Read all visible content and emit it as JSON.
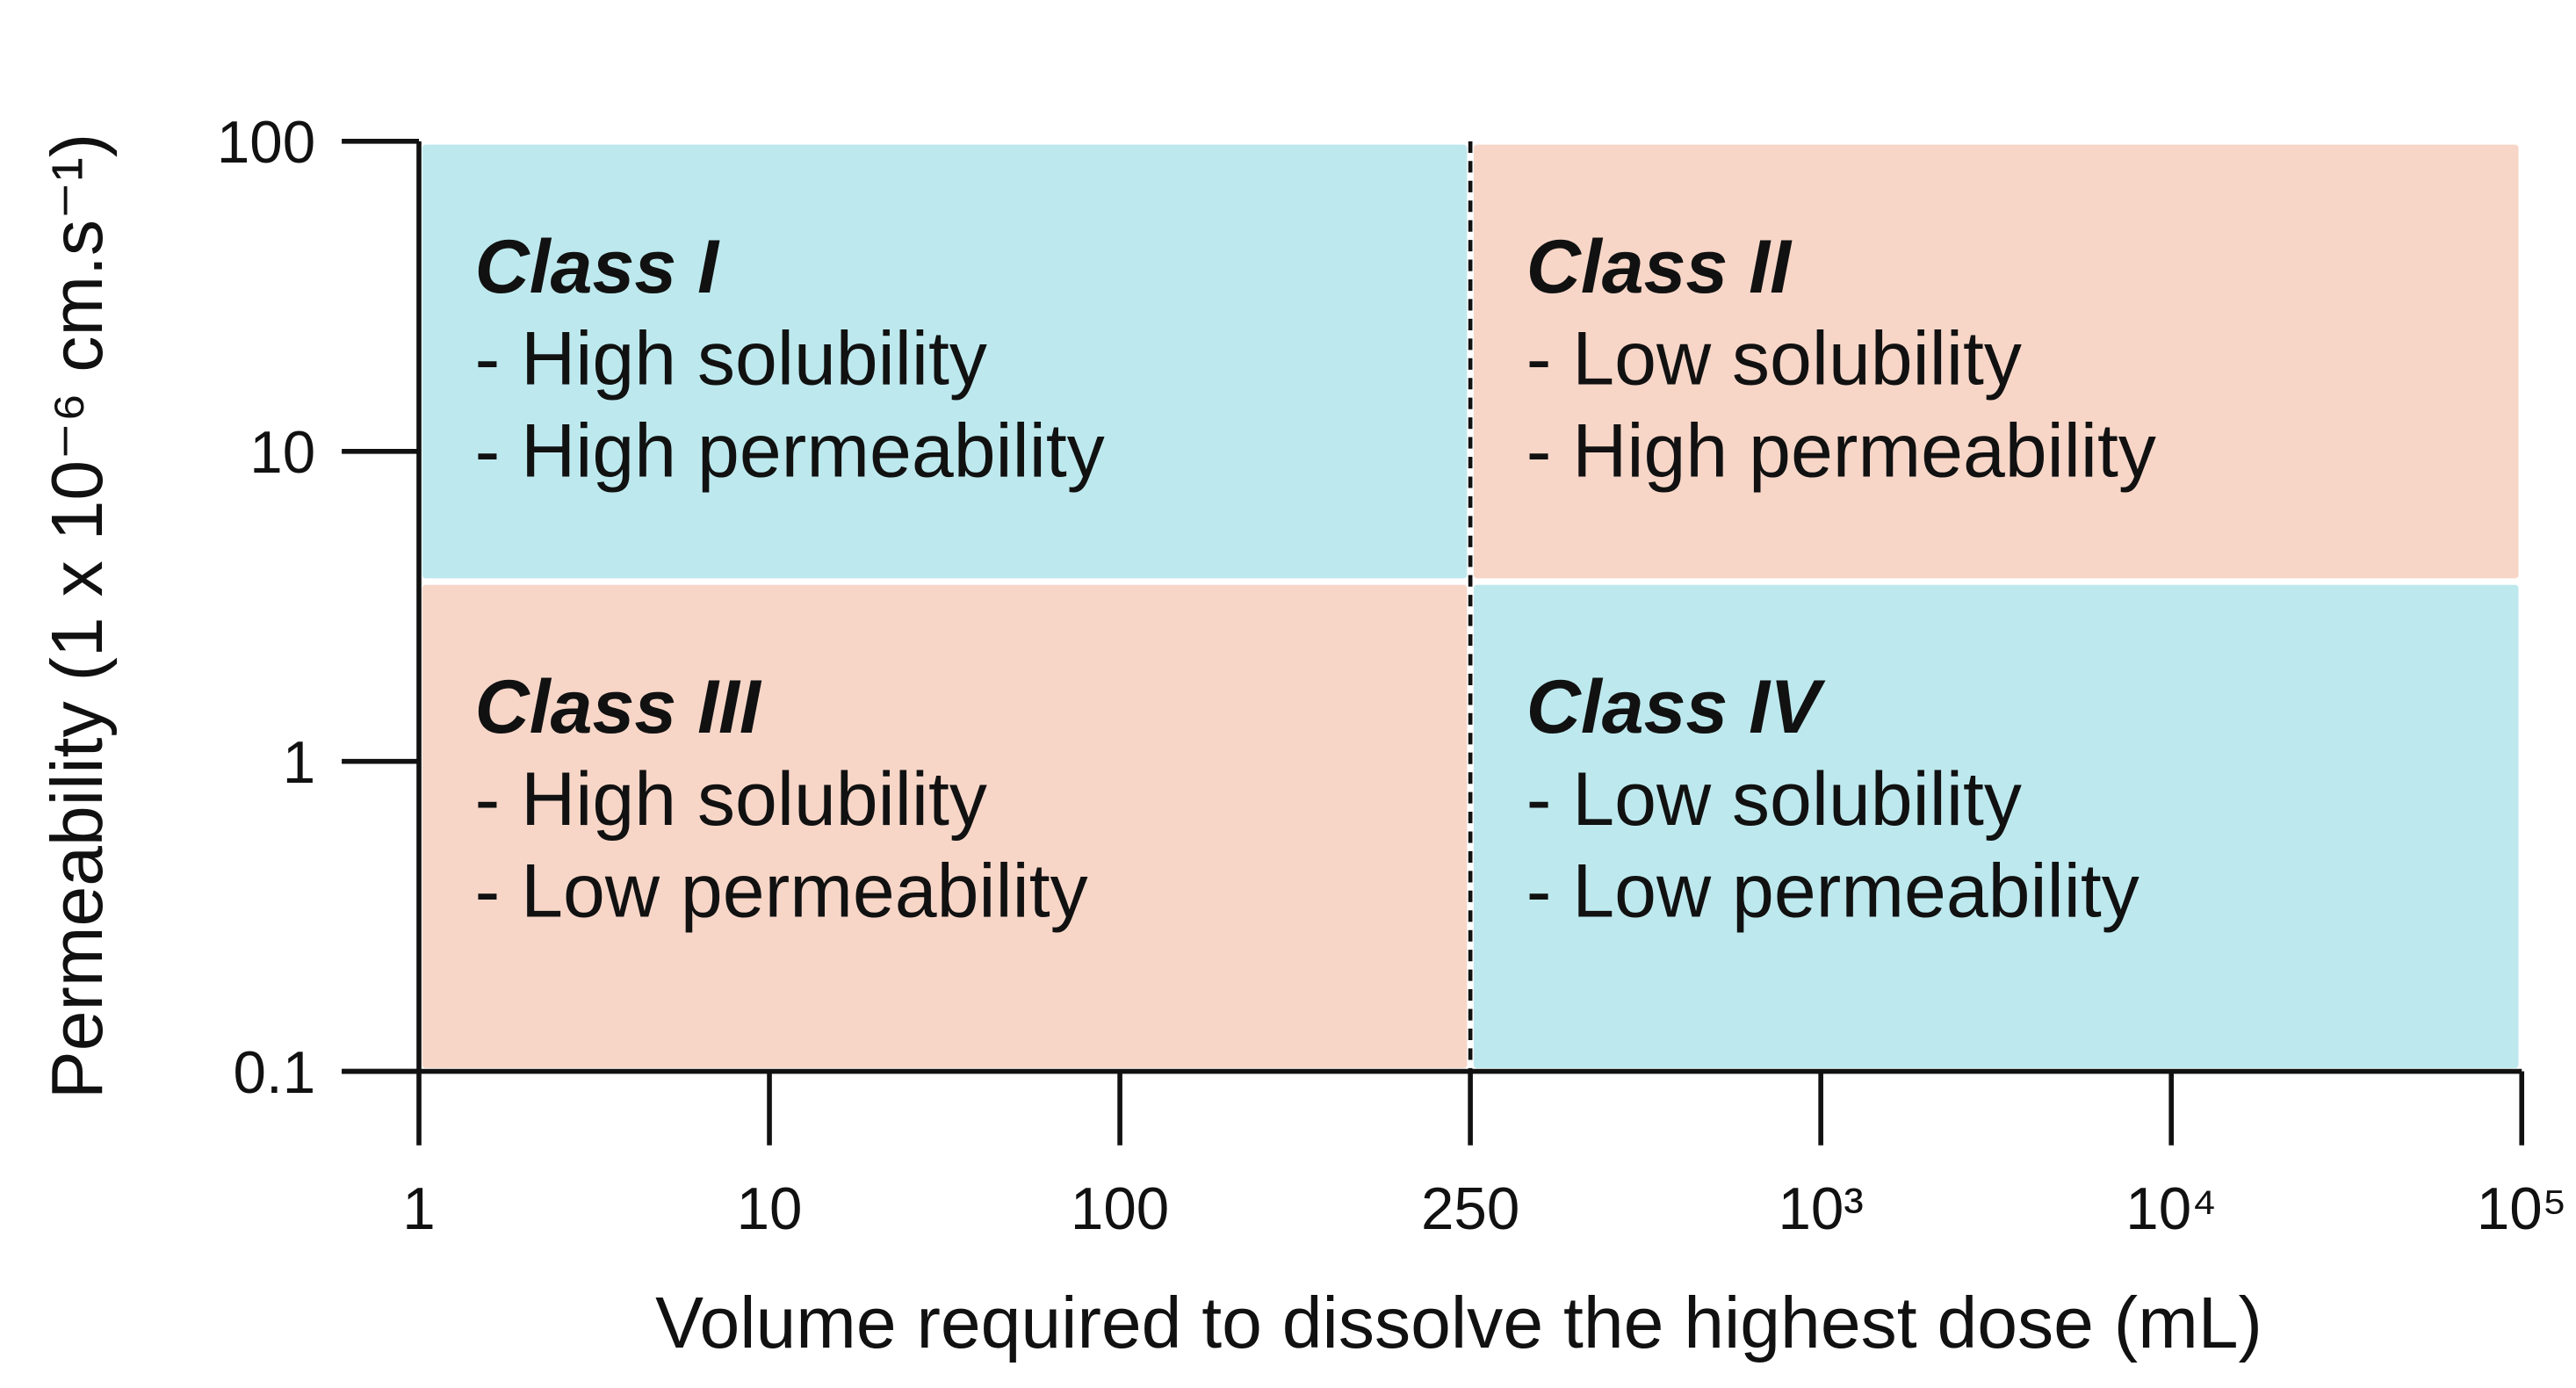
{
  "chart_data": {
    "type": "quadrant",
    "x_label": "Volume required to dissolve the highest dose (mL)",
    "y_label": "Permeability (1 x 10⁻⁶ cm.s⁻¹)",
    "xlim": [
      1,
      100000
    ],
    "xticks": [
      1,
      10,
      100,
      250,
      {
        "value": 1000,
        "label": "10³"
      },
      {
        "value": 10000,
        "label": "10⁴"
      },
      {
        "value": 100000,
        "label": "10⁵"
      }
    ],
    "ylim": [
      0.1,
      100
    ],
    "yticks": [
      0.1,
      1,
      10,
      100
    ],
    "y_scale": "log",
    "divider_x": 250,
    "regions": [
      {
        "title": "Class I",
        "lines": [
          "- High solubility",
          "- High permeability"
        ],
        "x": [
          1,
          250
        ],
        "y": [
          3.8,
          100
        ],
        "color": "#bde9ee"
      },
      {
        "title": "Class II",
        "lines": [
          "- Low solubility",
          "- High permeability"
        ],
        "x": [
          250,
          100000
        ],
        "y": [
          3.8,
          100
        ],
        "color": "#f7d6c8"
      },
      {
        "title": "Class III",
        "lines": [
          "- High solubility",
          "- Low permeability"
        ],
        "x": [
          1,
          250
        ],
        "y": [
          0.1,
          3.8
        ],
        "color": "#f7d6c8"
      },
      {
        "title": "Class IV",
        "lines": [
          "- Low solubility",
          "- Low permeability"
        ],
        "x": [
          250,
          100000
        ],
        "y": [
          0.1,
          3.8
        ],
        "color": "#bde9ee"
      }
    ]
  }
}
